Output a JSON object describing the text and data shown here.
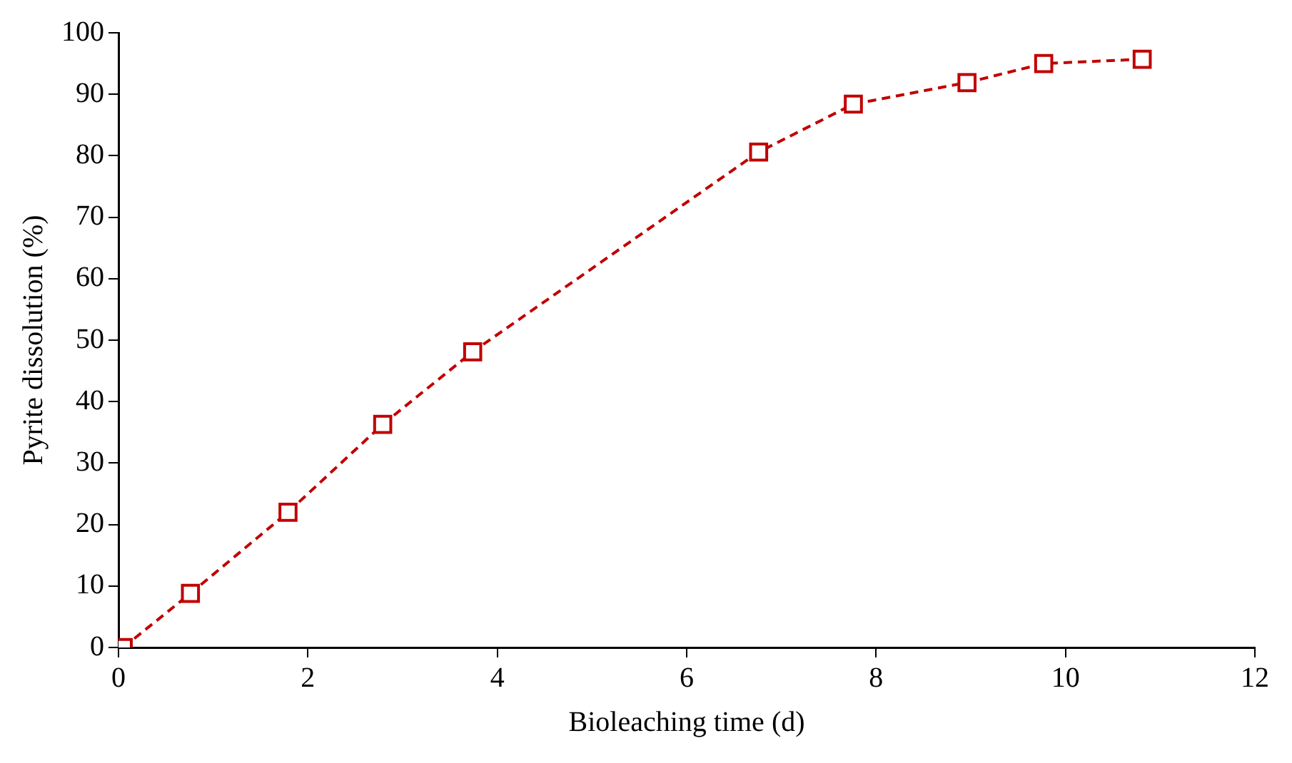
{
  "chart_data": {
    "type": "line",
    "xlabel": "Bioleaching time (d)",
    "ylabel": "Pyrite dissolution (%)",
    "x": [
      0.05,
      0.76,
      1.79,
      2.79,
      3.74,
      6.76,
      7.76,
      8.96,
      9.77,
      10.81
    ],
    "series": [
      {
        "color": "#c00000",
        "values": [
          0,
          8.8,
          22.0,
          36.3,
          48.1,
          80.6,
          88.4,
          91.9,
          95.0,
          95.7
        ]
      }
    ],
    "xlim": [
      0,
      12
    ],
    "xticks": [
      0,
      2,
      4,
      6,
      8,
      10,
      12
    ],
    "ylim": [
      0,
      100
    ],
    "yticks": [
      0,
      10,
      20,
      30,
      40,
      50,
      60,
      70,
      80,
      90,
      100
    ],
    "grid": false,
    "legend": false,
    "marker": "square",
    "line_style": "dashed"
  }
}
